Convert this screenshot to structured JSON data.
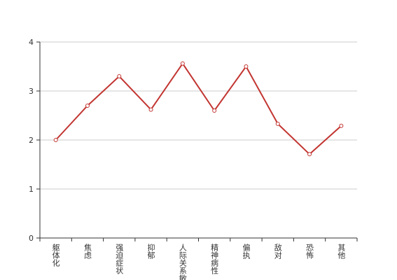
{
  "chart_data": {
    "type": "line",
    "categories": [
      "躯体化",
      "焦虑",
      "强迫症状",
      "抑郁",
      "人际关系敏感",
      "精神病性",
      "偏执",
      "敌对",
      "恐怖",
      "其他"
    ],
    "series": [
      {
        "color": "#c23531",
        "values": [
          2.0,
          2.7,
          3.3,
          2.62,
          3.56,
          2.6,
          3.5,
          2.33,
          1.71,
          2.29
        ]
      }
    ],
    "ylim": [
      0,
      4
    ],
    "yticks": [
      0,
      1,
      2,
      3,
      4
    ],
    "grid": true
  }
}
